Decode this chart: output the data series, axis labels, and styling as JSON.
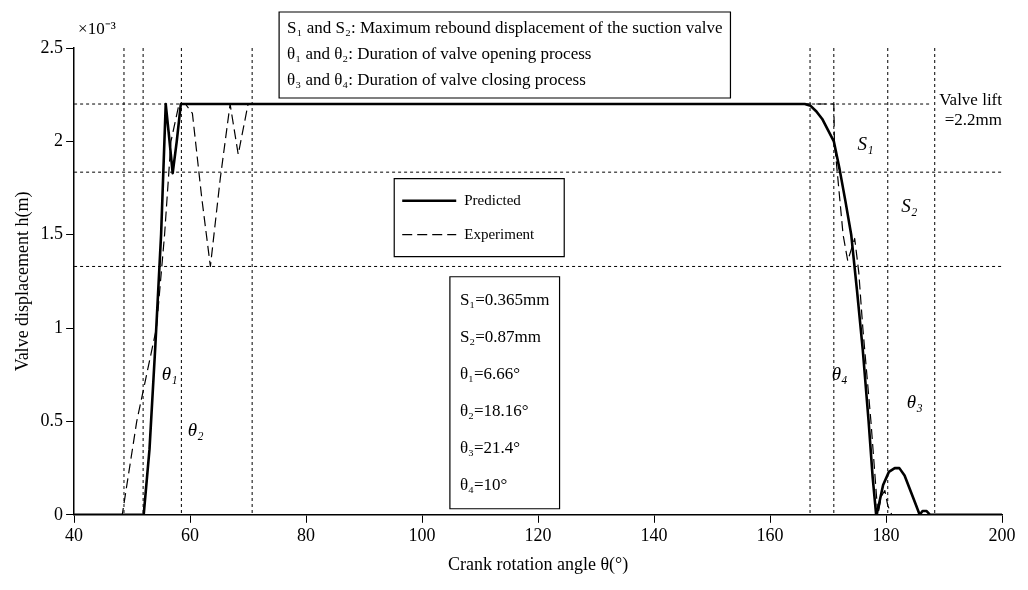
{
  "chart_data": {
    "type": "line",
    "xlabel": "Crank rotation angle θ(°)",
    "ylabel": "Valve displacement h(m)",
    "xlim": [
      40,
      200
    ],
    "xticks": [
      40,
      60,
      80,
      100,
      120,
      140,
      160,
      180,
      200
    ],
    "ylim": [
      0,
      2.5
    ],
    "yticks": [
      0,
      0.5,
      1,
      1.5,
      2,
      2.5
    ],
    "grid": false,
    "legend": "top",
    "marker": "none",
    "series": [
      {
        "name": "Predicted",
        "color": "#000000",
        "line_style": "solid",
        "x": [
          40,
          52,
          53,
          54,
          55,
          55.8,
          56.3,
          57,
          57.7,
          58.4,
          59,
          166,
          167,
          168,
          169,
          170,
          171,
          172,
          173,
          174,
          175,
          176,
          177,
          177.7,
          178.3,
          178.6,
          179.5,
          180.5,
          181.5,
          182.3,
          183.2,
          184.2,
          185.2,
          185.8,
          186.3,
          187,
          187.6,
          188.2,
          200
        ],
        "values": [
          0,
          0,
          0.35,
          0.9,
          1.5,
          2.2,
          2.05,
          1.83,
          2,
          2.2,
          2.2,
          2.2,
          2.19,
          2.16,
          2.12,
          2.06,
          2,
          1.85,
          1.68,
          1.5,
          1.2,
          0.88,
          0.5,
          0.2,
          0,
          0.03,
          0.16,
          0.23,
          0.25,
          0.25,
          0.21,
          0.13,
          0.05,
          0,
          0.02,
          0.02,
          0,
          0,
          0
        ]
      },
      {
        "name": "Experiment",
        "color": "#000000",
        "line_style": "dashed",
        "x": [
          40,
          48.3,
          50.8,
          52.5,
          54.2,
          55.6,
          56.7,
          58.1,
          59.2,
          60.4,
          62,
          63.5,
          65.2,
          66.9,
          68.3,
          70,
          171,
          171.1,
          172.6,
          173.4,
          174,
          174.6,
          175.3,
          176,
          177.4,
          178.6,
          179.2,
          179.8,
          180.3,
          181,
          200
        ],
        "values": [
          0,
          0,
          0.5,
          0.75,
          1,
          1.5,
          2,
          2.2,
          2.2,
          2.15,
          1.7,
          1.33,
          1.8,
          2.2,
          1.93,
          2.2,
          2.2,
          2,
          1.5,
          1.36,
          1.42,
          1.48,
          1.3,
          1,
          0.5,
          0,
          0.1,
          0.13,
          0.05,
          0,
          0
        ]
      }
    ],
    "ref_lines": [
      {
        "axis": "y",
        "value": 2.2,
        "label": "Valve lift =2.2mm",
        "line_style": "dotted"
      },
      {
        "axis": "y",
        "value": 1.835,
        "line_style": "dotted"
      },
      {
        "axis": "y",
        "value": 1.33,
        "line_style": "dotted"
      },
      {
        "axis": "x",
        "value": 48.6,
        "line_style": "dotted"
      },
      {
        "axis": "x",
        "value": 51.9,
        "line_style": "dotted"
      },
      {
        "axis": "x",
        "value": 58.5,
        "line_style": "dotted"
      },
      {
        "axis": "x",
        "value": 70.7,
        "line_style": "dotted"
      },
      {
        "axis": "x",
        "value": 166.9,
        "line_style": "dotted"
      },
      {
        "axis": "x",
        "value": 171,
        "line_style": "dotted"
      },
      {
        "axis": "x",
        "value": 180.3,
        "line_style": "dotted"
      },
      {
        "axis": "x",
        "value": 188.4,
        "line_style": "dotted"
      }
    ],
    "annotations": [
      "×10⁻³",
      "S₁ and S₂: Maximum rebound displacement of the suction valve",
      "θ₁ and θ₂: Duration of valve opening process",
      "θ₃ and θ₄: Duration of valve closing process",
      "S₁=0.365mm",
      "S₂=0.87mm",
      "θ₁=6.66°",
      "θ₂=18.16°",
      "θ₃=21.4°",
      "θ₄=10°",
      "θ₁",
      "θ₂",
      "θ₄",
      "θ₃",
      "S₁",
      "S₂"
    ]
  }
}
